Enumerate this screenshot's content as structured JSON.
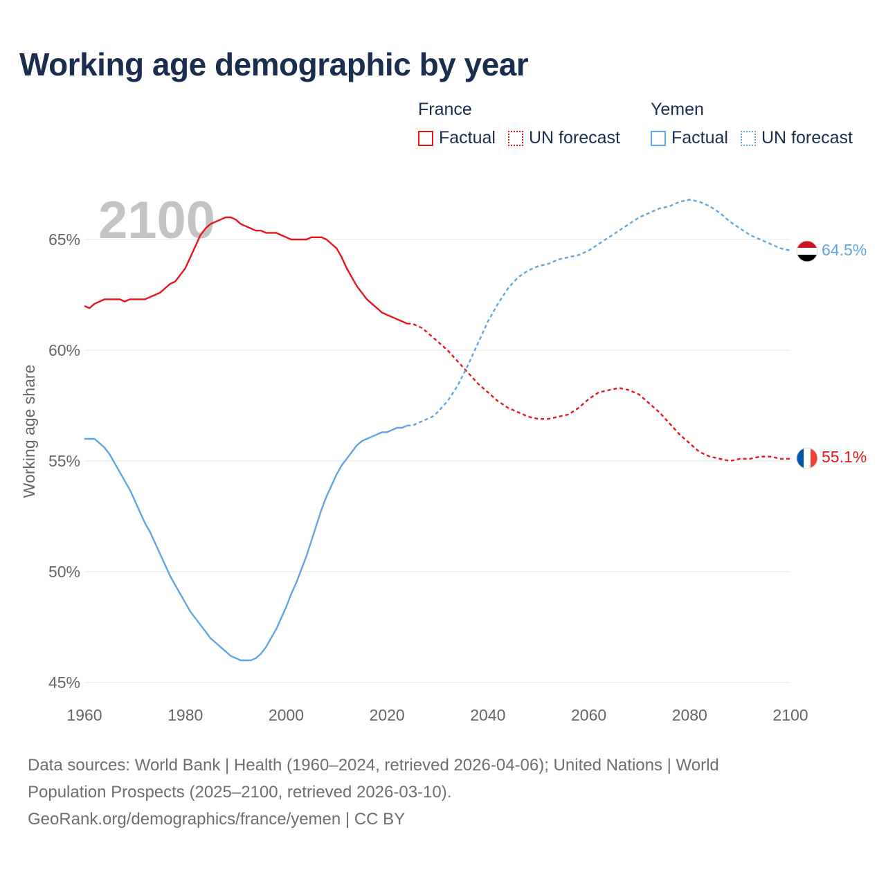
{
  "title": "Working age demographic by year",
  "legend": {
    "france": {
      "name": "France",
      "factual": "Factual",
      "forecast": "UN forecast"
    },
    "yemen": {
      "name": "Yemen",
      "factual": "Factual",
      "forecast": "UN forecast"
    }
  },
  "year_label": "2100",
  "end_labels": {
    "yemen": "64.5%",
    "france": "55.1%"
  },
  "footer": {
    "line1": "Data sources: World Bank | Health (1960–2024, retrieved 2026-04-06); United Nations | World",
    "line2": "Population Prospects (2025–2100, retrieved 2026-03-10).",
    "line3": "GeoRank.org/demographics/france/yemen | CC BY"
  },
  "colors": {
    "france": "#e8141c",
    "yemen": "#5fa5e3",
    "title": "#1a2e4f",
    "grid": "#e4e4e4",
    "axis_text": "#666666",
    "year_watermark": "#c4c4c4"
  },
  "chart_data": {
    "type": "line",
    "title": "Working age demographic by year",
    "xlabel": "",
    "ylabel": "Working age share",
    "xlim": [
      1960,
      2100
    ],
    "ylim": [
      45,
      67
    ],
    "xticks": [
      1960,
      1980,
      2000,
      2020,
      2040,
      2060,
      2080,
      2100
    ],
    "yticks": [
      45,
      50,
      55,
      60,
      65
    ],
    "ytick_labels": [
      "45%",
      "50%",
      "55%",
      "60%",
      "65%"
    ],
    "series": [
      {
        "name": "France",
        "factual_until": 2024,
        "points": [
          [
            1960,
            62.0
          ],
          [
            1961,
            61.9
          ],
          [
            1962,
            62.1
          ],
          [
            1963,
            62.2
          ],
          [
            1964,
            62.3
          ],
          [
            1965,
            62.3
          ],
          [
            1966,
            62.3
          ],
          [
            1967,
            62.3
          ],
          [
            1968,
            62.2
          ],
          [
            1969,
            62.3
          ],
          [
            1970,
            62.3
          ],
          [
            1971,
            62.3
          ],
          [
            1972,
            62.3
          ],
          [
            1973,
            62.4
          ],
          [
            1974,
            62.5
          ],
          [
            1975,
            62.6
          ],
          [
            1976,
            62.8
          ],
          [
            1977,
            63.0
          ],
          [
            1978,
            63.1
          ],
          [
            1979,
            63.4
          ],
          [
            1980,
            63.7
          ],
          [
            1981,
            64.2
          ],
          [
            1982,
            64.7
          ],
          [
            1983,
            65.2
          ],
          [
            1984,
            65.5
          ],
          [
            1985,
            65.7
          ],
          [
            1986,
            65.8
          ],
          [
            1987,
            65.9
          ],
          [
            1988,
            66.0
          ],
          [
            1989,
            66.0
          ],
          [
            1990,
            65.9
          ],
          [
            1991,
            65.7
          ],
          [
            1992,
            65.6
          ],
          [
            1993,
            65.5
          ],
          [
            1994,
            65.4
          ],
          [
            1995,
            65.4
          ],
          [
            1996,
            65.3
          ],
          [
            1997,
            65.3
          ],
          [
            1998,
            65.3
          ],
          [
            1999,
            65.2
          ],
          [
            2000,
            65.1
          ],
          [
            2001,
            65.0
          ],
          [
            2002,
            65.0
          ],
          [
            2003,
            65.0
          ],
          [
            2004,
            65.0
          ],
          [
            2005,
            65.1
          ],
          [
            2006,
            65.1
          ],
          [
            2007,
            65.1
          ],
          [
            2008,
            65.0
          ],
          [
            2009,
            64.8
          ],
          [
            2010,
            64.6
          ],
          [
            2011,
            64.2
          ],
          [
            2012,
            63.7
          ],
          [
            2013,
            63.3
          ],
          [
            2014,
            62.9
          ],
          [
            2015,
            62.6
          ],
          [
            2016,
            62.3
          ],
          [
            2017,
            62.1
          ],
          [
            2018,
            61.9
          ],
          [
            2019,
            61.7
          ],
          [
            2020,
            61.6
          ],
          [
            2021,
            61.5
          ],
          [
            2022,
            61.4
          ],
          [
            2023,
            61.3
          ],
          [
            2024,
            61.2
          ],
          [
            2025,
            61.2
          ],
          [
            2026,
            61.1
          ],
          [
            2027,
            61.0
          ],
          [
            2028,
            60.8
          ],
          [
            2029,
            60.6
          ],
          [
            2030,
            60.4
          ],
          [
            2032,
            60.0
          ],
          [
            2034,
            59.5
          ],
          [
            2036,
            59.0
          ],
          [
            2038,
            58.5
          ],
          [
            2040,
            58.1
          ],
          [
            2042,
            57.7
          ],
          [
            2044,
            57.4
          ],
          [
            2046,
            57.2
          ],
          [
            2048,
            57.0
          ],
          [
            2050,
            56.9
          ],
          [
            2052,
            56.9
          ],
          [
            2054,
            57.0
          ],
          [
            2056,
            57.1
          ],
          [
            2058,
            57.4
          ],
          [
            2060,
            57.8
          ],
          [
            2062,
            58.1
          ],
          [
            2064,
            58.2
          ],
          [
            2066,
            58.3
          ],
          [
            2068,
            58.2
          ],
          [
            2070,
            58.0
          ],
          [
            2072,
            57.6
          ],
          [
            2074,
            57.2
          ],
          [
            2076,
            56.7
          ],
          [
            2078,
            56.2
          ],
          [
            2080,
            55.8
          ],
          [
            2082,
            55.4
          ],
          [
            2084,
            55.2
          ],
          [
            2086,
            55.1
          ],
          [
            2088,
            55.0
          ],
          [
            2090,
            55.1
          ],
          [
            2092,
            55.1
          ],
          [
            2094,
            55.2
          ],
          [
            2096,
            55.2
          ],
          [
            2098,
            55.1
          ],
          [
            2100,
            55.1
          ]
        ]
      },
      {
        "name": "Yemen",
        "factual_until": 2024,
        "points": [
          [
            1960,
            56.0
          ],
          [
            1961,
            56.0
          ],
          [
            1962,
            56.0
          ],
          [
            1963,
            55.8
          ],
          [
            1964,
            55.6
          ],
          [
            1965,
            55.3
          ],
          [
            1966,
            54.9
          ],
          [
            1967,
            54.5
          ],
          [
            1968,
            54.1
          ],
          [
            1969,
            53.7
          ],
          [
            1970,
            53.2
          ],
          [
            1971,
            52.7
          ],
          [
            1972,
            52.2
          ],
          [
            1973,
            51.8
          ],
          [
            1974,
            51.3
          ],
          [
            1975,
            50.8
          ],
          [
            1976,
            50.3
          ],
          [
            1977,
            49.8
          ],
          [
            1978,
            49.4
          ],
          [
            1979,
            49.0
          ],
          [
            1980,
            48.6
          ],
          [
            1981,
            48.2
          ],
          [
            1982,
            47.9
          ],
          [
            1983,
            47.6
          ],
          [
            1984,
            47.3
          ],
          [
            1985,
            47.0
          ],
          [
            1986,
            46.8
          ],
          [
            1987,
            46.6
          ],
          [
            1988,
            46.4
          ],
          [
            1989,
            46.2
          ],
          [
            1990,
            46.1
          ],
          [
            1991,
            46.0
          ],
          [
            1992,
            46.0
          ],
          [
            1993,
            46.0
          ],
          [
            1994,
            46.1
          ],
          [
            1995,
            46.3
          ],
          [
            1996,
            46.6
          ],
          [
            1997,
            47.0
          ],
          [
            1998,
            47.4
          ],
          [
            1999,
            47.9
          ],
          [
            2000,
            48.4
          ],
          [
            2001,
            49.0
          ],
          [
            2002,
            49.5
          ],
          [
            2003,
            50.1
          ],
          [
            2004,
            50.7
          ],
          [
            2005,
            51.4
          ],
          [
            2006,
            52.1
          ],
          [
            2007,
            52.8
          ],
          [
            2008,
            53.4
          ],
          [
            2009,
            53.9
          ],
          [
            2010,
            54.4
          ],
          [
            2011,
            54.8
          ],
          [
            2012,
            55.1
          ],
          [
            2013,
            55.4
          ],
          [
            2014,
            55.7
          ],
          [
            2015,
            55.9
          ],
          [
            2016,
            56.0
          ],
          [
            2017,
            56.1
          ],
          [
            2018,
            56.2
          ],
          [
            2019,
            56.3
          ],
          [
            2020,
            56.3
          ],
          [
            2021,
            56.4
          ],
          [
            2022,
            56.5
          ],
          [
            2023,
            56.5
          ],
          [
            2024,
            56.6
          ],
          [
            2025,
            56.6
          ],
          [
            2026,
            56.7
          ],
          [
            2027,
            56.8
          ],
          [
            2028,
            56.9
          ],
          [
            2029,
            57.0
          ],
          [
            2030,
            57.2
          ],
          [
            2032,
            57.7
          ],
          [
            2034,
            58.4
          ],
          [
            2036,
            59.3
          ],
          [
            2038,
            60.3
          ],
          [
            2040,
            61.3
          ],
          [
            2042,
            62.1
          ],
          [
            2044,
            62.8
          ],
          [
            2046,
            63.3
          ],
          [
            2048,
            63.6
          ],
          [
            2050,
            63.8
          ],
          [
            2052,
            63.9
          ],
          [
            2054,
            64.1
          ],
          [
            2056,
            64.2
          ],
          [
            2058,
            64.3
          ],
          [
            2060,
            64.5
          ],
          [
            2062,
            64.8
          ],
          [
            2064,
            65.1
          ],
          [
            2066,
            65.4
          ],
          [
            2068,
            65.7
          ],
          [
            2070,
            66.0
          ],
          [
            2072,
            66.2
          ],
          [
            2074,
            66.4
          ],
          [
            2076,
            66.5
          ],
          [
            2078,
            66.7
          ],
          [
            2080,
            66.8
          ],
          [
            2082,
            66.7
          ],
          [
            2084,
            66.5
          ],
          [
            2086,
            66.2
          ],
          [
            2088,
            65.8
          ],
          [
            2090,
            65.5
          ],
          [
            2092,
            65.2
          ],
          [
            2094,
            65.0
          ],
          [
            2096,
            64.8
          ],
          [
            2098,
            64.6
          ],
          [
            2100,
            64.5
          ]
        ]
      }
    ]
  }
}
